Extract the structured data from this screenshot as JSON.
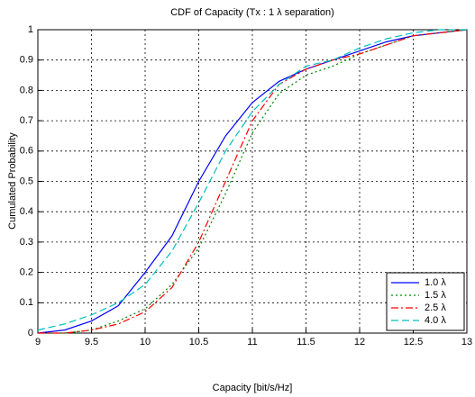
{
  "chart_data": {
    "type": "line",
    "title": "CDF of Capacity (Tx : 1 λ separation)",
    "x_label": "Capacity [bit/s/Hz]",
    "y_label": "Cumulated Probability",
    "x": [
      9,
      9.25,
      9.5,
      9.75,
      10,
      10.25,
      10.5,
      10.75,
      11,
      11.25,
      11.5,
      11.75,
      12,
      12.25,
      12.5,
      12.75,
      13
    ],
    "series": [
      {
        "name": "1.0 λ",
        "color": "#0000ff",
        "dash": "solid",
        "values": [
          0,
          0.01,
          0.04,
          0.09,
          0.2,
          0.32,
          0.5,
          0.65,
          0.76,
          0.83,
          0.87,
          0.9,
          0.93,
          0.96,
          0.98,
          0.99,
          1
        ]
      },
      {
        "name": "1.5 λ",
        "color": "#008000",
        "dash": "dotted",
        "values": [
          0,
          0,
          0.01,
          0.04,
          0.08,
          0.16,
          0.28,
          0.46,
          0.66,
          0.79,
          0.85,
          0.88,
          0.92,
          0.95,
          0.98,
          0.99,
          1
        ]
      },
      {
        "name": "2.5 λ",
        "color": "#ff0000",
        "dash": "dashdot",
        "values": [
          0,
          0,
          0.01,
          0.03,
          0.07,
          0.15,
          0.3,
          0.5,
          0.7,
          0.82,
          0.87,
          0.9,
          0.92,
          0.95,
          0.98,
          0.99,
          1
        ]
      },
      {
        "name": "4.0 λ",
        "color": "#00bfbf",
        "dash": "dashed",
        "values": [
          0.01,
          0.03,
          0.06,
          0.1,
          0.16,
          0.27,
          0.43,
          0.6,
          0.73,
          0.82,
          0.88,
          0.9,
          0.94,
          0.97,
          0.99,
          1,
          1
        ]
      }
    ],
    "xlim": [
      9,
      13
    ],
    "xticks": [
      9,
      9.5,
      10,
      10.5,
      11,
      11.5,
      12,
      12.5,
      13
    ],
    "ylim": [
      0,
      1
    ],
    "yticks": [
      0,
      0.1,
      0.2,
      0.3,
      0.4,
      0.5,
      0.6,
      0.7,
      0.8,
      0.9,
      1
    ],
    "grid": true,
    "legend": "lower right"
  }
}
